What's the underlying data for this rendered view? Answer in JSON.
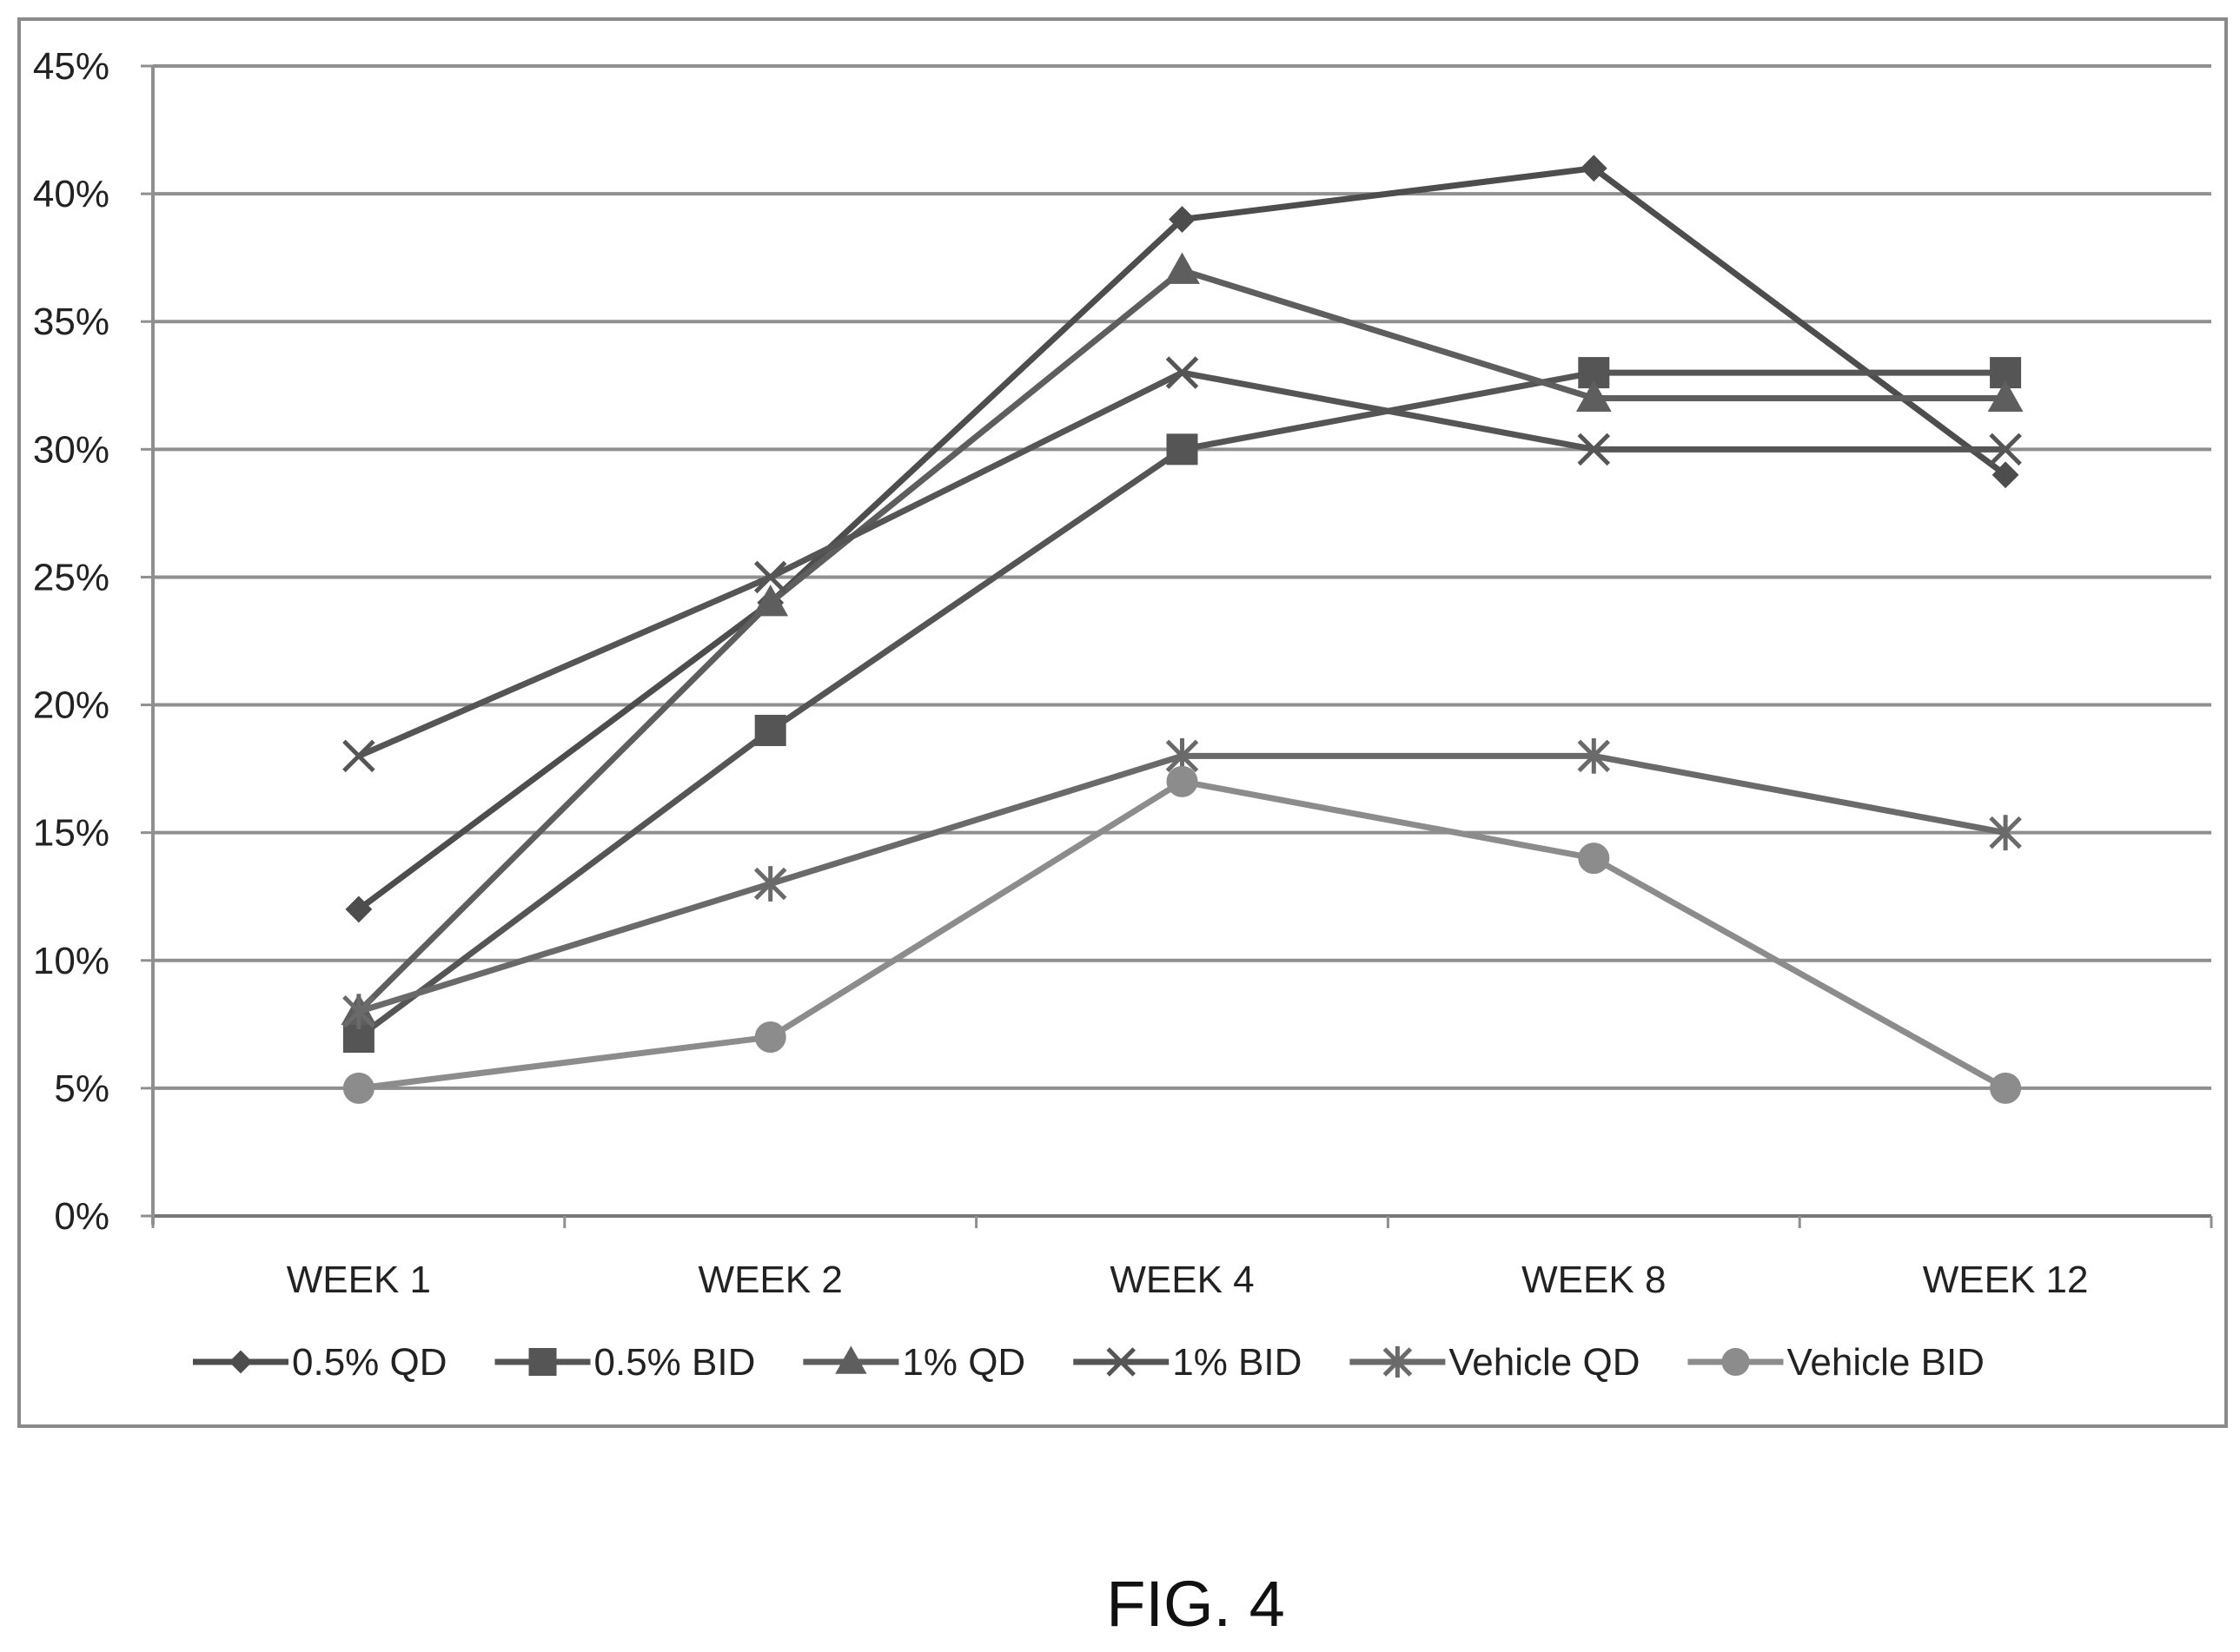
{
  "figure_caption": "FIG. 4",
  "chart_data": {
    "type": "line",
    "title": "",
    "xlabel": "",
    "ylabel": "",
    "categories": [
      "WEEK 1",
      "WEEK 2",
      "WEEK 4",
      "WEEK 8",
      "WEEK 12"
    ],
    "ylim": [
      0,
      45
    ],
    "y_ticks": [
      0,
      5,
      10,
      15,
      20,
      25,
      30,
      35,
      40,
      45
    ],
    "y_tick_labels": [
      "0%",
      "5%",
      "10%",
      "15%",
      "20%",
      "25%",
      "30%",
      "35%",
      "40%",
      "45%"
    ],
    "y_unit": "%",
    "grid": "horizontal",
    "legend_position": "bottom",
    "series": [
      {
        "name": "0.5% QD",
        "marker": "diamond",
        "color": "#4d4d4d",
        "values": [
          12,
          24,
          39,
          41,
          29
        ]
      },
      {
        "name": "0.5% BID",
        "marker": "square",
        "color": "#555555",
        "values": [
          7,
          19,
          30,
          33,
          33
        ]
      },
      {
        "name": "1% QD",
        "marker": "triangle",
        "color": "#5e5e5e",
        "values": [
          8,
          24,
          37,
          32,
          32
        ]
      },
      {
        "name": "1% BID",
        "marker": "x",
        "color": "#555555",
        "values": [
          18,
          25,
          33,
          30,
          30
        ]
      },
      {
        "name": "Vehicle QD",
        "marker": "star",
        "color": "#6a6a6a",
        "values": [
          8,
          13,
          18,
          18,
          15
        ]
      },
      {
        "name": "Vehicle BID",
        "marker": "circle",
        "color": "#8c8c8c",
        "values": [
          5,
          7,
          17,
          14,
          5
        ]
      }
    ]
  }
}
